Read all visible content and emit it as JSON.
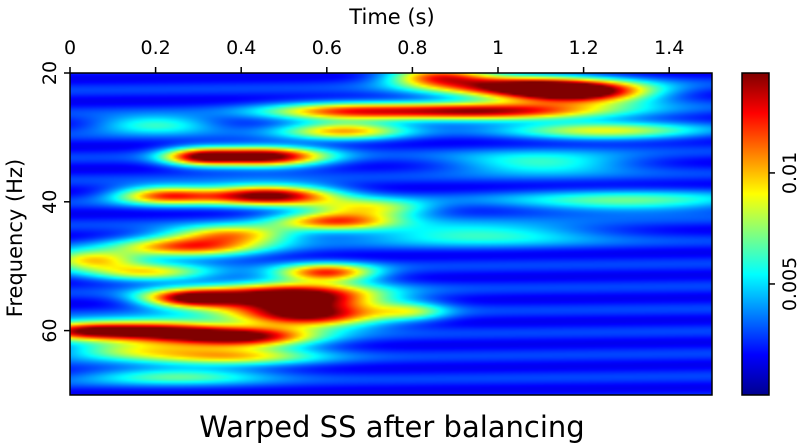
{
  "chart_data": {
    "type": "heatmap",
    "title": "Warped SS after balancing",
    "xlabel": "Time (s)",
    "ylabel": "Frequency (Hz)",
    "xlim": [
      0,
      1.5
    ],
    "ylim": [
      20,
      70
    ],
    "x_ticks": [
      0,
      0.2,
      0.4,
      0.6,
      0.8,
      1,
      1.2,
      1.4
    ],
    "x_tick_labels": [
      "0",
      "0.2",
      "0.4",
      "0.6",
      "0.8",
      "1",
      "1.2",
      "1.4"
    ],
    "y_ticks": [
      20,
      40,
      60
    ],
    "y_tick_labels": [
      "20",
      "40",
      "60"
    ],
    "colorbar": {
      "min": 0,
      "max": 0.0145,
      "ticks": [
        0.005,
        0.01
      ],
      "tick_labels": [
        "0.005",
        "0.01"
      ],
      "colormap": "jet"
    },
    "energy_blobs": [
      {
        "t": 1.18,
        "f": 23,
        "st": 0.12,
        "sf": 1.2,
        "v": 0.0145
      },
      {
        "t": 1.02,
        "f": 22,
        "st": 0.14,
        "sf": 1.2,
        "v": 0.0095
      },
      {
        "t": 0.86,
        "f": 20.5,
        "st": 0.08,
        "sf": 1.0,
        "v": 0.0085
      },
      {
        "t": 0.95,
        "f": 26,
        "st": 0.22,
        "sf": 1.0,
        "v": 0.0115
      },
      {
        "t": 0.64,
        "f": 29,
        "st": 0.1,
        "sf": 1.0,
        "v": 0.0075
      },
      {
        "t": 0.45,
        "f": 33,
        "st": 0.1,
        "sf": 1.1,
        "v": 0.013
      },
      {
        "t": 0.3,
        "f": 33,
        "st": 0.06,
        "sf": 1.0,
        "v": 0.0085
      },
      {
        "t": 0.46,
        "f": 39,
        "st": 0.11,
        "sf": 1.1,
        "v": 0.013
      },
      {
        "t": 0.22,
        "f": 39,
        "st": 0.08,
        "sf": 1.0,
        "v": 0.009
      },
      {
        "t": 0.7,
        "f": 41,
        "st": 0.1,
        "sf": 1.0,
        "v": 0.0065
      },
      {
        "t": 0.62,
        "f": 43,
        "st": 0.1,
        "sf": 1.0,
        "v": 0.0085
      },
      {
        "t": 0.38,
        "f": 45,
        "st": 0.1,
        "sf": 1.0,
        "v": 0.0075
      },
      {
        "t": 0.28,
        "f": 47,
        "st": 0.12,
        "sf": 1.2,
        "v": 0.009
      },
      {
        "t": 0.05,
        "f": 49,
        "st": 0.08,
        "sf": 1.0,
        "v": 0.0075
      },
      {
        "t": 0.6,
        "f": 51,
        "st": 0.08,
        "sf": 1.0,
        "v": 0.0095
      },
      {
        "t": 0.18,
        "f": 51,
        "st": 0.1,
        "sf": 1.0,
        "v": 0.0065
      },
      {
        "t": 0.52,
        "f": 55,
        "st": 0.14,
        "sf": 1.6,
        "v": 0.0155
      },
      {
        "t": 0.28,
        "f": 55,
        "st": 0.08,
        "sf": 1.0,
        "v": 0.011
      },
      {
        "t": 0.56,
        "f": 58,
        "st": 0.12,
        "sf": 1.2,
        "v": 0.0095
      },
      {
        "t": 0.04,
        "f": 60,
        "st": 0.1,
        "sf": 1.0,
        "v": 0.0115
      },
      {
        "t": 0.22,
        "f": 60,
        "st": 0.1,
        "sf": 1.2,
        "v": 0.009
      },
      {
        "t": 0.4,
        "f": 61,
        "st": 0.12,
        "sf": 1.2,
        "v": 0.012
      },
      {
        "t": 0.38,
        "f": 64,
        "st": 0.14,
        "sf": 1.0,
        "v": 0.0065
      },
      {
        "t": 0.15,
        "f": 63,
        "st": 0.12,
        "sf": 1.0,
        "v": 0.0055
      },
      {
        "t": 0.62,
        "f": 26,
        "st": 0.12,
        "sf": 1.0,
        "v": 0.0055
      },
      {
        "t": 0.2,
        "f": 28,
        "st": 0.1,
        "sf": 1.0,
        "v": 0.0045
      },
      {
        "t": 1.25,
        "f": 29,
        "st": 0.15,
        "sf": 1.0,
        "v": 0.006
      },
      {
        "t": 1.1,
        "f": 34,
        "st": 0.15,
        "sf": 1.2,
        "v": 0.0045
      },
      {
        "t": 1.3,
        "f": 40,
        "st": 0.2,
        "sf": 1.2,
        "v": 0.0045
      },
      {
        "t": 0.95,
        "f": 45,
        "st": 0.2,
        "sf": 1.2,
        "v": 0.0045
      },
      {
        "t": 0.25,
        "f": 67,
        "st": 0.15,
        "sf": 1.0,
        "v": 0.0045
      },
      {
        "t": 0.8,
        "f": 57,
        "st": 0.06,
        "sf": 1.0,
        "v": 0.004
      }
    ]
  }
}
